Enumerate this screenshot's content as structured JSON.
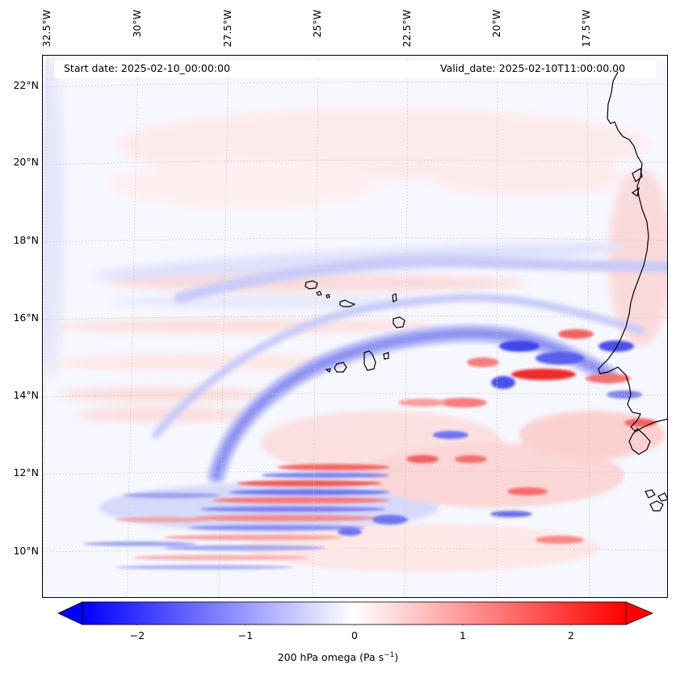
{
  "map": {
    "start_date": "Start date: 2025-02-10_00:00:00",
    "valid_date": "Valid_date: 2025-02-10T11:00:00.00",
    "lon_labels": [
      "32.5°W",
      "30°W",
      "27.5°W",
      "25°W",
      "22.5°W",
      "20°W",
      "17.5°W"
    ],
    "lat_labels": [
      "22°N",
      "20°N",
      "18°N",
      "16°N",
      "14°N",
      "12°N",
      "10°N"
    ],
    "colors": {
      "negative": "#0000ff",
      "neutral": "#ffffff",
      "positive": "#ff0000",
      "coastline": "#000000",
      "gridline": "#bbbbbb"
    }
  },
  "colorbar": {
    "ticks": [
      "−2",
      "−1",
      "0",
      "1",
      "2"
    ],
    "tick_values": [
      -2,
      -1,
      0,
      1,
      2
    ],
    "range": [
      -2.5,
      2.5
    ],
    "extend": "both",
    "label_main": "200 hPa omega (Pa s",
    "label_sup": "−1",
    "label_end": ")"
  }
}
